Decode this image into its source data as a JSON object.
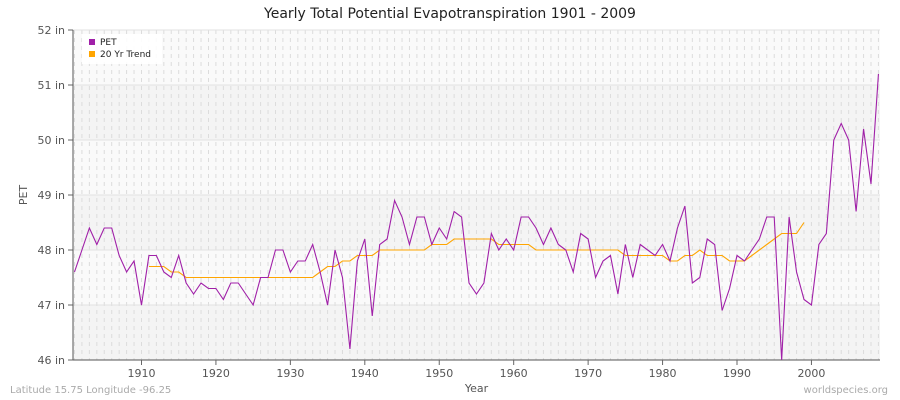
{
  "chart_data": {
    "type": "line",
    "title": "Yearly Total Potential Evapotranspiration 1901 - 2009",
    "xlabel": "Year",
    "ylabel": "PET",
    "xlim": [
      1901,
      2009
    ],
    "ylim": [
      46,
      52
    ],
    "x_ticks": [
      1910,
      1920,
      1930,
      1940,
      1950,
      1960,
      1970,
      1980,
      1990,
      2000
    ],
    "y_ticks": [
      46,
      47,
      48,
      49,
      50,
      51,
      52
    ],
    "y_tick_labels": [
      "46 in",
      "47 in",
      "48 in",
      "49 in",
      "50 in",
      "51 in",
      "52 in"
    ],
    "grid": true,
    "legend_position": "top-left",
    "series": [
      {
        "name": "PET",
        "color": "#a020a8",
        "x_start": 1901,
        "values": [
          47.6,
          48.0,
          48.4,
          48.1,
          48.4,
          48.4,
          47.9,
          47.6,
          47.8,
          47.0,
          47.9,
          47.9,
          47.6,
          47.5,
          47.9,
          47.4,
          47.2,
          47.4,
          47.3,
          47.3,
          47.1,
          47.4,
          47.4,
          47.2,
          47.0,
          47.5,
          47.5,
          48.0,
          48.0,
          47.6,
          47.8,
          47.8,
          48.1,
          47.6,
          47.0,
          48.0,
          47.5,
          46.2,
          47.8,
          48.2,
          46.8,
          48.1,
          48.2,
          48.9,
          48.6,
          48.1,
          48.6,
          48.6,
          48.1,
          48.4,
          48.2,
          48.7,
          48.6,
          47.4,
          47.2,
          47.4,
          48.3,
          48.0,
          48.2,
          48.0,
          48.6,
          48.6,
          48.4,
          48.1,
          48.4,
          48.1,
          48.0,
          47.6,
          48.3,
          48.2,
          47.5,
          47.8,
          47.9,
          47.2,
          48.1,
          47.5,
          48.1,
          48.0,
          47.9,
          48.1,
          47.8,
          48.4,
          48.8,
          47.4,
          47.5,
          48.2,
          48.1,
          46.9,
          47.3,
          47.9,
          47.8,
          48.0,
          48.2,
          48.6,
          48.6,
          46.0,
          48.6,
          47.6,
          47.1,
          47.0,
          48.1,
          48.3,
          50.0,
          50.3,
          50.0,
          48.7,
          50.2,
          49.2,
          51.2
        ]
      },
      {
        "name": "20 Yr Trend",
        "color": "#ffa500",
        "x_start": 1911,
        "values": [
          47.7,
          47.7,
          47.7,
          47.6,
          47.6,
          47.5,
          47.5,
          47.5,
          47.5,
          47.5,
          47.5,
          47.5,
          47.5,
          47.5,
          47.5,
          47.5,
          47.5,
          47.5,
          47.5,
          47.5,
          47.5,
          47.5,
          47.5,
          47.6,
          47.7,
          47.7,
          47.8,
          47.8,
          47.9,
          47.9,
          47.9,
          48.0,
          48.0,
          48.0,
          48.0,
          48.0,
          48.0,
          48.0,
          48.1,
          48.1,
          48.1,
          48.2,
          48.2,
          48.2,
          48.2,
          48.2,
          48.2,
          48.1,
          48.1,
          48.1,
          48.1,
          48.1,
          48.0,
          48.0,
          48.0,
          48.0,
          48.0,
          48.0,
          48.0,
          48.0,
          48.0,
          48.0,
          48.0,
          48.0,
          47.9,
          47.9,
          47.9,
          47.9,
          47.9,
          47.9,
          47.8,
          47.8,
          47.9,
          47.9,
          48.0,
          47.9,
          47.9,
          47.9,
          47.8,
          47.8,
          47.8,
          47.9,
          48.0,
          48.1,
          48.2,
          48.3,
          48.3,
          48.3,
          48.5
        ]
      }
    ]
  },
  "footer": {
    "location": "Latitude 15.75 Longitude -96.25",
    "source": "worldspecies.org"
  }
}
